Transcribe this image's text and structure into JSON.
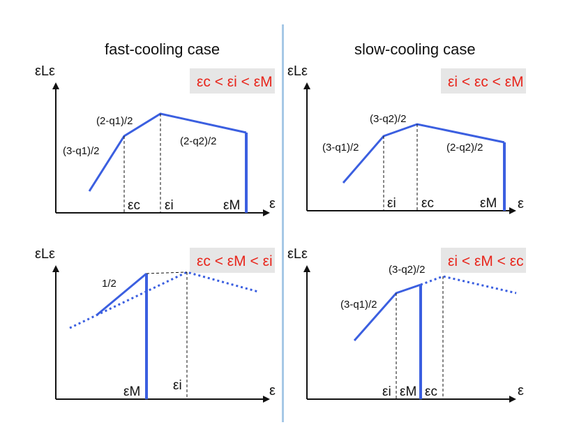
{
  "titles": {
    "left": "fast-cooling case",
    "right": "slow-cooling case"
  },
  "panels": [
    {
      "id": "top-left",
      "y_axis_label": "εLε",
      "x_axis_label": "ε",
      "condition": "εc < εi < εM",
      "breaks": [
        "εc",
        "εi",
        "εM"
      ],
      "slopes": [
        "(3-q1)/2",
        "(2-q1)/2",
        "(2-q2)/2"
      ]
    },
    {
      "id": "top-right",
      "y_axis_label": "εLε",
      "x_axis_label": "ε",
      "condition": "εi < εc < εM",
      "breaks": [
        "εi",
        "εc",
        "εM"
      ],
      "slopes": [
        "(3-q1)/2",
        "(3-q2)/2",
        "(2-q2)/2"
      ]
    },
    {
      "id": "bottom-left",
      "y_axis_label": "εLε",
      "x_axis_label": "ε",
      "condition": "εc < εM < εi",
      "breaks": [
        "εM",
        "εi"
      ],
      "slopes": [
        "1/2"
      ]
    },
    {
      "id": "bottom-right",
      "y_axis_label": "εLε",
      "x_axis_label": "ε",
      "condition": "εi < εM < εc",
      "breaks": [
        "εi",
        "εM",
        "εc"
      ],
      "slopes": [
        "(3-q1)/2",
        "(3-q2)/2"
      ]
    }
  ],
  "colors": {
    "curve": "#3b5fe0",
    "condition_text": "#e8261c",
    "condition_box": "#e6e6e6",
    "divider": "#a6c8e6"
  }
}
